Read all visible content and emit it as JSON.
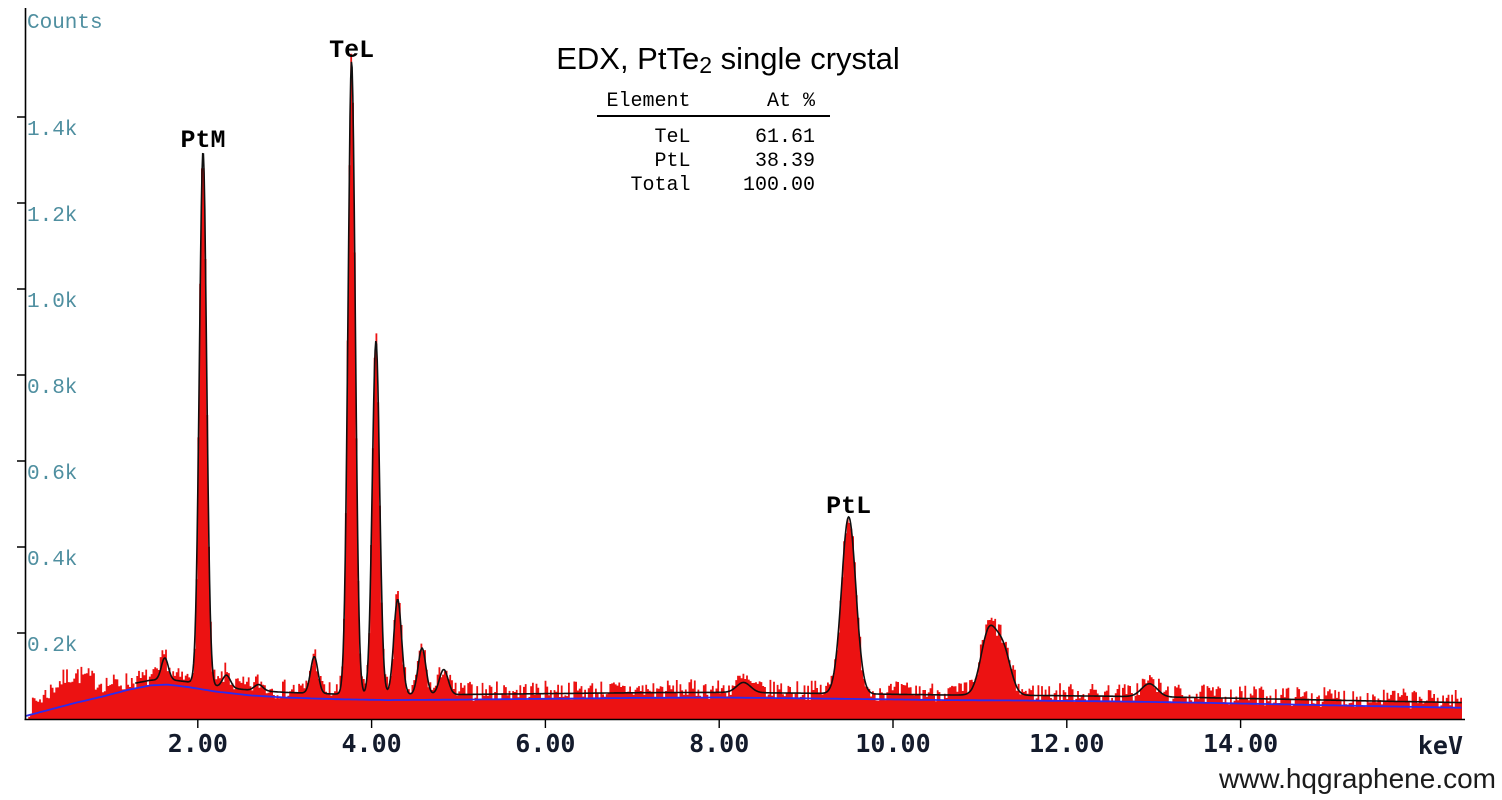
{
  "window": {
    "background": "#ffffff"
  },
  "title": {
    "prefix": "EDX, PtTe",
    "subscript": "2",
    "suffix": " single crystal"
  },
  "watermark": "www.hqgraphene.com",
  "composition_table": {
    "col_element": "Element",
    "col_atpct": "At %",
    "rows": [
      {
        "element": "TeL",
        "at_pct": "61.61"
      },
      {
        "element": "PtL",
        "at_pct": "38.39"
      },
      {
        "element": "Total",
        "at_pct": "100.00"
      }
    ]
  },
  "chart_data": {
    "type": "area",
    "title": "EDX, PtTe2 single crystal",
    "xlabel": "keV",
    "ylabel": "Counts",
    "xlim": [
      0,
      16.6
    ],
    "ylim": [
      0,
      1680
    ],
    "grid": false,
    "legend": "none",
    "x_ticks": [
      {
        "value": 2,
        "label": "2.00"
      },
      {
        "value": 4,
        "label": "4.00"
      },
      {
        "value": 6,
        "label": "6.00"
      },
      {
        "value": 8,
        "label": "8.00"
      },
      {
        "value": 10,
        "label": "10.00"
      },
      {
        "value": 12,
        "label": "12.00"
      },
      {
        "value": 14,
        "label": "14.00"
      }
    ],
    "y_ticks": [
      {
        "value": 200,
        "label": "0.2k"
      },
      {
        "value": 400,
        "label": "0.4k"
      },
      {
        "value": 600,
        "label": "0.6k"
      },
      {
        "value": 800,
        "label": "0.8k"
      },
      {
        "value": 1000,
        "label": "1.0k"
      },
      {
        "value": 1200,
        "label": "1.2k"
      },
      {
        "value": 1400,
        "label": "1.4k"
      }
    ],
    "peaks": [
      {
        "label": "",
        "energy_keV": 0.55,
        "apex_counts": 95,
        "sigma_keV": 0.22
      },
      {
        "label": "",
        "energy_keV": 1.62,
        "apex_counts": 142,
        "sigma_keV": 0.04
      },
      {
        "label": "PtM",
        "energy_keV": 2.06,
        "apex_counts": 1320,
        "sigma_keV": 0.042
      },
      {
        "label": "",
        "energy_keV": 2.33,
        "apex_counts": 102,
        "sigma_keV": 0.045
      },
      {
        "label": "",
        "energy_keV": 2.7,
        "apex_counts": 80,
        "sigma_keV": 0.05
      },
      {
        "label": "",
        "energy_keV": 3.34,
        "apex_counts": 145,
        "sigma_keV": 0.042
      },
      {
        "label": "TeL",
        "energy_keV": 3.77,
        "apex_counts": 1530,
        "sigma_keV": 0.042
      },
      {
        "label": "",
        "energy_keV": 4.05,
        "apex_counts": 880,
        "sigma_keV": 0.042
      },
      {
        "label": "",
        "energy_keV": 4.3,
        "apex_counts": 278,
        "sigma_keV": 0.045
      },
      {
        "label": "",
        "energy_keV": 4.58,
        "apex_counts": 165,
        "sigma_keV": 0.045
      },
      {
        "label": "",
        "energy_keV": 4.83,
        "apex_counts": 115,
        "sigma_keV": 0.05
      },
      {
        "label": "",
        "energy_keV": 8.28,
        "apex_counts": 85,
        "sigma_keV": 0.08
      },
      {
        "label": "PtL",
        "energy_keV": 9.49,
        "apex_counts": 470,
        "sigma_keV": 0.082
      },
      {
        "label": "",
        "energy_keV": 11.1,
        "apex_counts": 200,
        "sigma_keV": 0.09
      },
      {
        "label": "",
        "energy_keV": 11.27,
        "apex_counts": 155,
        "sigma_keV": 0.085
      },
      {
        "label": "",
        "energy_keV": 12.95,
        "apex_counts": 82,
        "sigma_keV": 0.09
      }
    ],
    "baseline_points": [
      [
        0,
        6
      ],
      [
        0.3,
        22
      ],
      [
        0.6,
        38
      ],
      [
        0.9,
        52
      ],
      [
        1.2,
        68
      ],
      [
        1.45,
        78
      ],
      [
        1.65,
        80
      ],
      [
        1.9,
        74
      ],
      [
        2.2,
        64
      ],
      [
        2.6,
        55
      ],
      [
        3.0,
        50
      ],
      [
        3.6,
        46
      ],
      [
        4.2,
        44
      ],
      [
        5.0,
        45
      ],
      [
        6.0,
        47
      ],
      [
        7.0,
        49
      ],
      [
        8.0,
        50
      ],
      [
        9.0,
        48
      ],
      [
        9.8,
        46
      ],
      [
        10.6,
        44
      ],
      [
        11.5,
        43
      ],
      [
        12.5,
        41
      ],
      [
        13.5,
        38
      ],
      [
        14.5,
        34
      ],
      [
        15.5,
        30
      ],
      [
        16.6,
        26
      ]
    ],
    "colors": {
      "spectrum_fill": "#ec1212",
      "fit_line": "#101010",
      "background_line": "#2b2bef",
      "axis": "#000000",
      "y_label_text": "#4f8fa0",
      "x_label_text": "#141b2c",
      "peak_label_text": "#000000",
      "watermark_text": "#1b1b1b"
    }
  }
}
